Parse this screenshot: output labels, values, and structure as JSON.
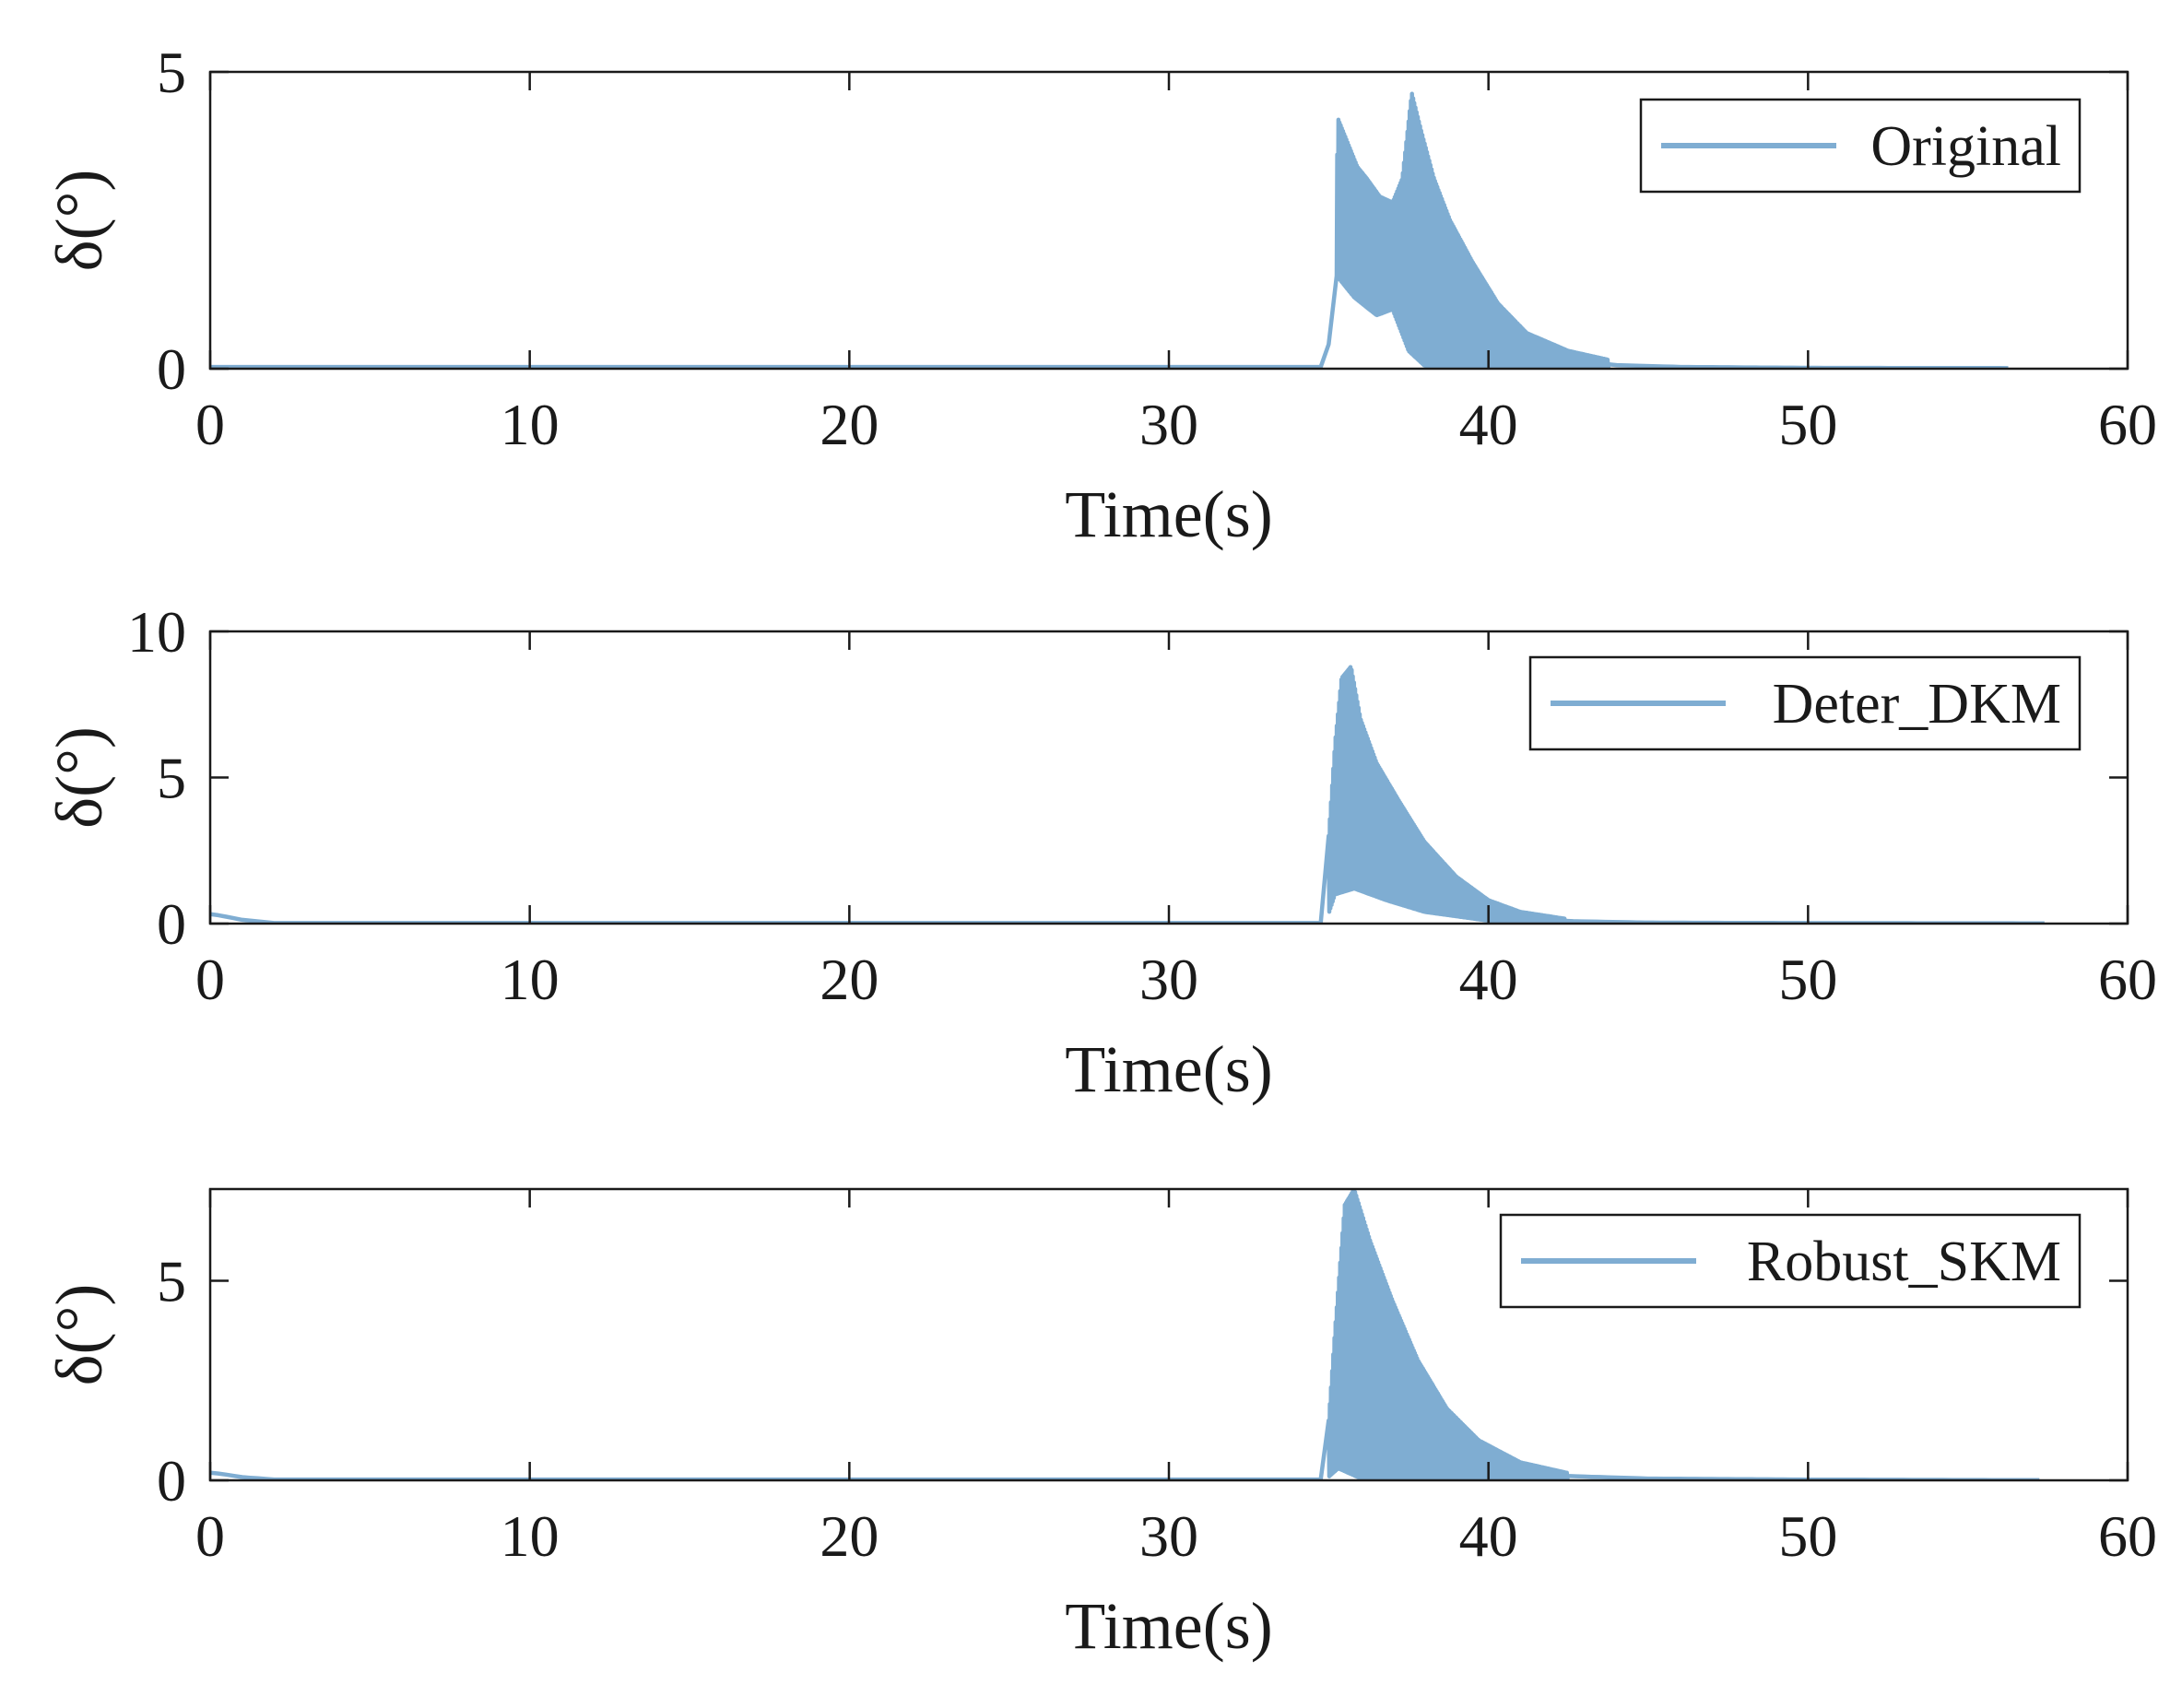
{
  "chart_data": [
    {
      "type": "line",
      "xlabel": "Time(s)",
      "ylabel": "δ(°)",
      "xlim": [
        0,
        60
      ],
      "ylim": [
        0,
        5
      ],
      "xticks": [
        0,
        10,
        20,
        30,
        40,
        50,
        60
      ],
      "yticks": [
        0,
        5
      ],
      "grid": false,
      "legend_position": "top-right",
      "line_color": "#7fadd2",
      "series": [
        {
          "name": "Original",
          "x_end": 56.3,
          "envelope_upper": [
            [
              0,
              0.03
            ],
            [
              34.9,
              0.03
            ],
            [
              35.1,
              0.5
            ],
            [
              35.3,
              4.2
            ],
            [
              35.6,
              3.8
            ],
            [
              35.9,
              3.4
            ],
            [
              36.2,
              3.2
            ],
            [
              36.6,
              2.9
            ],
            [
              37.0,
              2.8
            ],
            [
              37.3,
              3.2
            ],
            [
              37.6,
              4.65
            ],
            [
              37.9,
              4.0
            ],
            [
              38.3,
              3.2
            ],
            [
              38.8,
              2.5
            ],
            [
              39.5,
              1.8
            ],
            [
              40.3,
              1.1
            ],
            [
              41.2,
              0.6
            ],
            [
              42.5,
              0.3
            ],
            [
              44.0,
              0.12
            ],
            [
              46.0,
              0.06
            ],
            [
              50.0,
              0.03
            ],
            [
              56.3,
              0.02
            ]
          ],
          "envelope_lower": [
            [
              0,
              0.03
            ],
            [
              34.9,
              0.03
            ],
            [
              35.2,
              1.6
            ],
            [
              35.8,
              1.2
            ],
            [
              36.5,
              0.9
            ],
            [
              37.0,
              1.0
            ],
            [
              37.5,
              0.3
            ],
            [
              38.0,
              0.05
            ],
            [
              40.0,
              0.0
            ],
            [
              56.3,
              0.0
            ]
          ]
        }
      ]
    },
    {
      "type": "line",
      "xlabel": "Time(s)",
      "ylabel": "δ(°)",
      "xlim": [
        0,
        60
      ],
      "ylim": [
        0,
        10
      ],
      "xticks": [
        0,
        10,
        20,
        30,
        40,
        50,
        60
      ],
      "yticks": [
        0,
        5,
        10
      ],
      "grid": false,
      "legend_position": "top-right",
      "line_color": "#7fadd2",
      "series": [
        {
          "name": "Deter_DKM",
          "x_end": 57.6,
          "envelope_upper": [
            [
              0,
              0.35
            ],
            [
              0.3,
              0.3
            ],
            [
              1.0,
              0.1
            ],
            [
              2.0,
              0.02
            ],
            [
              34.9,
              0.02
            ],
            [
              35.0,
              3.0
            ],
            [
              35.2,
              6.2
            ],
            [
              35.4,
              8.4
            ],
            [
              35.7,
              8.8
            ],
            [
              36.0,
              7.0
            ],
            [
              36.5,
              5.5
            ],
            [
              37.2,
              4.2
            ],
            [
              38.0,
              2.8
            ],
            [
              39.0,
              1.6
            ],
            [
              40.0,
              0.8
            ],
            [
              41.0,
              0.4
            ],
            [
              42.5,
              0.15
            ],
            [
              45.0,
              0.05
            ],
            [
              50.0,
              0.02
            ],
            [
              57.6,
              0.01
            ]
          ],
          "envelope_lower": [
            [
              0,
              0.3
            ],
            [
              2.0,
              0.02
            ],
            [
              34.9,
              0.02
            ],
            [
              35.2,
              1.0
            ],
            [
              35.8,
              1.2
            ],
            [
              36.8,
              0.8
            ],
            [
              38.0,
              0.4
            ],
            [
              40.0,
              0.1
            ],
            [
              42.0,
              0.02
            ],
            [
              57.6,
              0.01
            ]
          ]
        }
      ]
    },
    {
      "type": "line",
      "xlabel": "Time(s)",
      "ylabel": "δ(°)",
      "xlim": [
        0,
        60
      ],
      "ylim": [
        0,
        7.3
      ],
      "xticks": [
        0,
        10,
        20,
        30,
        40,
        50,
        60
      ],
      "yticks": [
        0,
        5
      ],
      "grid": false,
      "legend_position": "top-right",
      "line_color": "#7fadd2",
      "series": [
        {
          "name": "Robust_SKM",
          "x_end": 57.3,
          "envelope_upper": [
            [
              0,
              0.2
            ],
            [
              0.3,
              0.18
            ],
            [
              1.0,
              0.06
            ],
            [
              2.0,
              0.02
            ],
            [
              34.9,
              0.02
            ],
            [
              35.0,
              1.5
            ],
            [
              35.2,
              3.8
            ],
            [
              35.5,
              6.9
            ],
            [
              35.8,
              7.3
            ],
            [
              36.3,
              6.0
            ],
            [
              37.0,
              4.5
            ],
            [
              37.8,
              3.0
            ],
            [
              38.7,
              1.8
            ],
            [
              39.7,
              1.0
            ],
            [
              41.0,
              0.45
            ],
            [
              42.5,
              0.18
            ],
            [
              45.0,
              0.06
            ],
            [
              50.0,
              0.02
            ],
            [
              57.3,
              0.01
            ]
          ],
          "envelope_lower": [
            [
              0,
              0.18
            ],
            [
              2.0,
              0.02
            ],
            [
              34.9,
              0.02
            ],
            [
              35.3,
              0.3
            ],
            [
              36.0,
              0.05
            ],
            [
              57.3,
              0.0
            ]
          ]
        }
      ]
    }
  ]
}
